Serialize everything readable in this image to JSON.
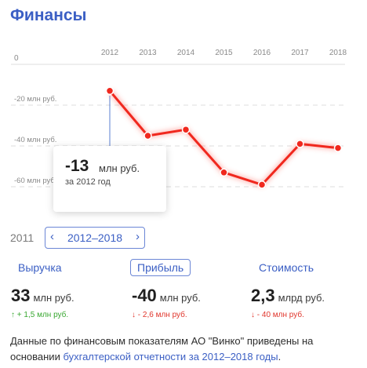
{
  "title": "Финансы",
  "chart_data": {
    "type": "line",
    "x": [
      "2012",
      "2013",
      "2014",
      "2015",
      "2016",
      "2017",
      "2018"
    ],
    "y_ticks": [
      "0",
      "-20 млн руб.",
      "-40 млн руб.",
      "-60 млн руб."
    ],
    "y_tick_values": [
      0,
      -20,
      -40,
      -60
    ],
    "ylim": [
      -70,
      0
    ],
    "series": [
      {
        "values": [
          -13,
          -35,
          -32,
          -53,
          -59,
          -39,
          -41
        ]
      }
    ],
    "grid": true,
    "line_color": "#f0281e"
  },
  "tooltip": {
    "value": "-13",
    "unit": "млн руб.",
    "subtitle": "за 2012 год"
  },
  "period": {
    "left_year": "2011",
    "range": "2012–2018",
    "prev_icon": "chevron-left-icon",
    "next_icon": "chevron-right-icon"
  },
  "metrics": [
    {
      "tab": "Выручка",
      "value": "33",
      "unit": "млн руб.",
      "delta": "↑ + 1,5 млн руб.",
      "trend": "up"
    },
    {
      "tab": "Прибыль",
      "value": "-40",
      "unit": "млн руб.",
      "delta": "↓ - 2,6 млн руб.",
      "trend": "down"
    },
    {
      "tab": "Стоимость",
      "value": "2,3",
      "unit": "млрд руб.",
      "delta": "↓ - 40 млн руб.",
      "trend": "down"
    }
  ],
  "note": {
    "text": "Данные по финансовым показателям АО \"Винко\" приведены на основании ",
    "link": "бухгалтерской отчетности за 2012–2018 годы",
    "end": "."
  }
}
